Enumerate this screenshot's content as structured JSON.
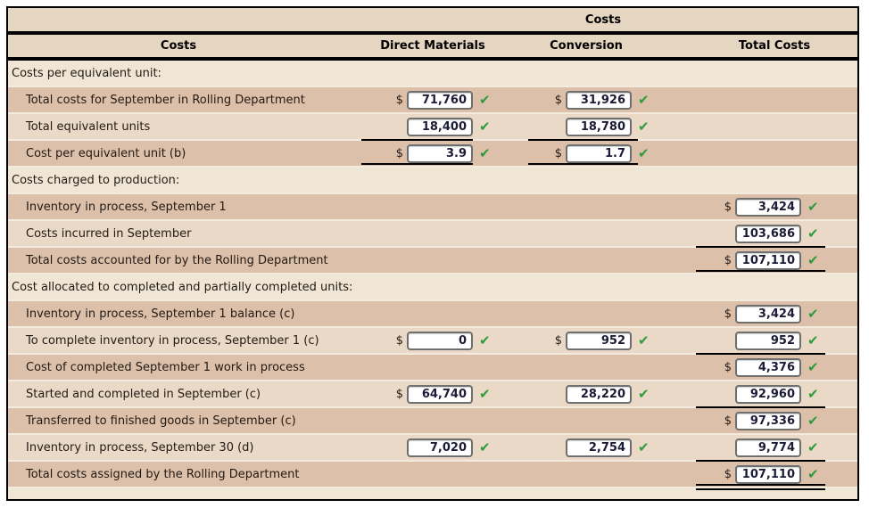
{
  "table": {
    "title": "Costs",
    "columns": {
      "label_col": "Costs",
      "dm": "Direct Materials",
      "conv": "Conversion",
      "total": "Total Costs"
    }
  },
  "labels": {
    "dollar": "$",
    "check": "✔"
  },
  "colors": {
    "check_green": "#2e9b3c",
    "header_bg": "#e5d6c2",
    "section_bg": "#efe6d5",
    "row_dark": "#ddc0a9",
    "row_light": "#e9d9c6",
    "rule_black": "#000000"
  },
  "rows": [
    {
      "type": "section",
      "label": "Costs per equivalent unit:"
    },
    {
      "type": "data",
      "shade": "dark",
      "label": "Total costs for September in Rolling Department",
      "dm": {
        "value": "71,760",
        "dollar": true
      },
      "conv": {
        "value": "31,926",
        "dollar": true
      }
    },
    {
      "type": "data",
      "shade": "light",
      "label": "Total equivalent units",
      "dm": {
        "value": "18,400",
        "rule": "single"
      },
      "conv": {
        "value": "18,780",
        "rule": "single"
      }
    },
    {
      "type": "data",
      "shade": "dark",
      "label": "Cost per equivalent unit (b)",
      "dm": {
        "value": "3.9",
        "dollar": true,
        "rule": "double"
      },
      "conv": {
        "value": "1.7",
        "dollar": true,
        "rule": "double"
      }
    },
    {
      "type": "section",
      "label": "Costs charged to production:"
    },
    {
      "type": "data",
      "shade": "dark",
      "label": "Inventory in process, September 1",
      "total": {
        "value": "3,424",
        "dollar": true
      }
    },
    {
      "type": "data",
      "shade": "light",
      "label": "Costs incurred in September",
      "total": {
        "value": "103,686",
        "rule": "single"
      }
    },
    {
      "type": "data",
      "shade": "dark",
      "label": "Total costs accounted for by the Rolling Department",
      "total": {
        "value": "107,110",
        "dollar": true,
        "rule": "double"
      }
    },
    {
      "type": "section",
      "label": "Cost allocated to completed and partially completed units:"
    },
    {
      "type": "data",
      "shade": "dark",
      "label": "Inventory in process, September 1 balance (c)",
      "total": {
        "value": "3,424",
        "dollar": true
      }
    },
    {
      "type": "data",
      "shade": "light",
      "label": "To complete inventory in process, September 1 (c)",
      "dm": {
        "value": "0",
        "dollar": true
      },
      "conv": {
        "value": "952",
        "dollar": true
      },
      "total": {
        "value": "952",
        "rule": "single"
      }
    },
    {
      "type": "data",
      "shade": "dark",
      "label": "Cost of completed September 1 work in process",
      "total": {
        "value": "4,376",
        "dollar": true
      }
    },
    {
      "type": "data",
      "shade": "light",
      "label": "Started and completed in September (c)",
      "dm": {
        "value": "64,740",
        "dollar": true
      },
      "conv": {
        "value": "28,220"
      },
      "total": {
        "value": "92,960",
        "rule": "single"
      }
    },
    {
      "type": "data",
      "shade": "dark",
      "label": "Transferred to finished goods in September (c)",
      "total": {
        "value": "97,336",
        "dollar": true
      }
    },
    {
      "type": "data",
      "shade": "light",
      "label": "Inventory in process, September 30 (d)",
      "dm": {
        "value": "7,020"
      },
      "conv": {
        "value": "2,754"
      },
      "total": {
        "value": "9,774",
        "rule": "single"
      }
    },
    {
      "type": "data",
      "shade": "dark",
      "label": "Total costs assigned by the Rolling Department",
      "total": {
        "value": "107,110",
        "dollar": true,
        "rule": "double"
      }
    }
  ]
}
